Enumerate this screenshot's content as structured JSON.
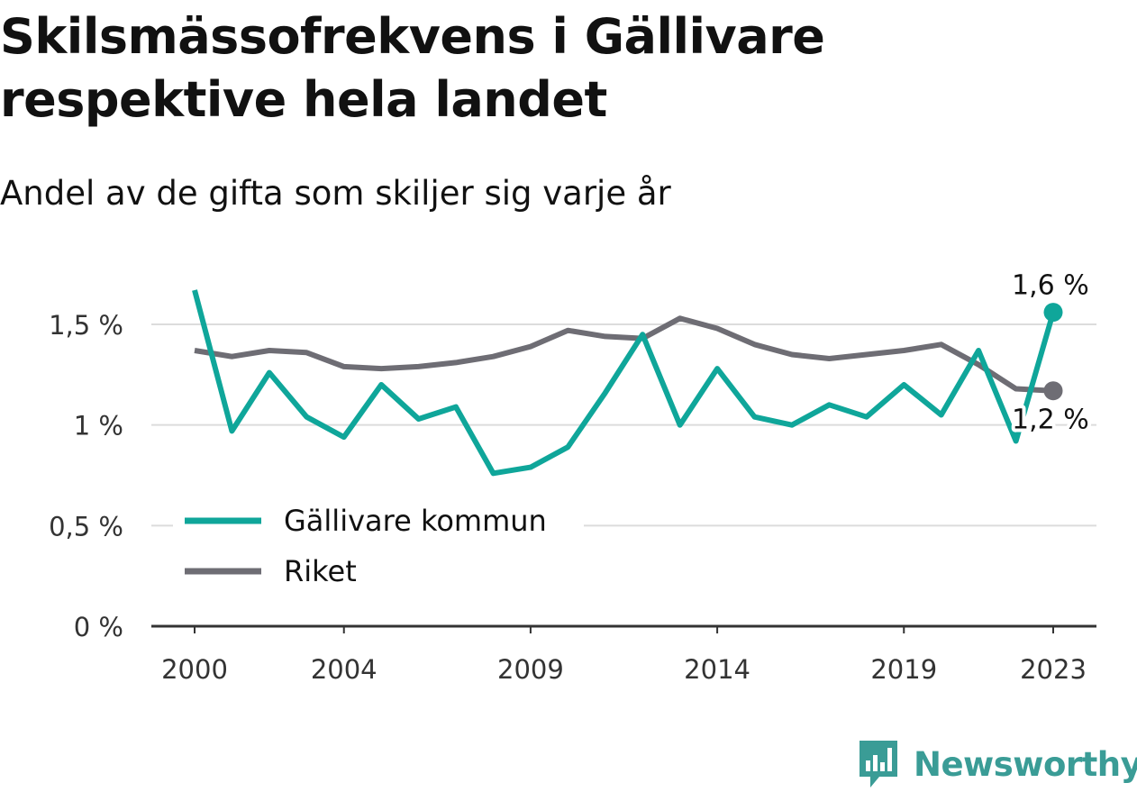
{
  "title": "Skilsmässofrekvens i Gällivare respektive hela landet",
  "subtitle": "Andel av de gifta som skiljer sig varje år",
  "brand": {
    "name": "Newsworthy",
    "color": "#3a9c96",
    "icon": "newsworthy-bar-chart-icon"
  },
  "chart_data": {
    "type": "line",
    "x": [
      2000,
      2001,
      2002,
      2003,
      2004,
      2005,
      2006,
      2007,
      2008,
      2009,
      2010,
      2011,
      2012,
      2013,
      2014,
      2015,
      2016,
      2017,
      2018,
      2019,
      2020,
      2021,
      2022,
      2023
    ],
    "x_ticks": [
      2000,
      2004,
      2009,
      2014,
      2019,
      2023
    ],
    "y_ticks": [
      0,
      0.5,
      1,
      1.5
    ],
    "y_tick_labels": [
      "0 %",
      "0,5 %",
      "1 %",
      "1,5 %"
    ],
    "ylim": [
      0,
      1.65
    ],
    "grid": true,
    "legend_position": "bottom-left",
    "series": [
      {
        "name": "Gällivare kommun",
        "color": "#0fa69a",
        "values": [
          1.67,
          0.97,
          1.26,
          1.04,
          0.94,
          1.2,
          1.03,
          1.09,
          0.76,
          0.79,
          0.89,
          1.16,
          1.45,
          1.0,
          1.28,
          1.04,
          1.0,
          1.1,
          1.04,
          1.2,
          1.05,
          1.37,
          0.92,
          1.56
        ],
        "end_label": "1,6 %"
      },
      {
        "name": "Riket",
        "color": "#6e6d74",
        "values": [
          1.37,
          1.34,
          1.37,
          1.36,
          1.29,
          1.28,
          1.29,
          1.31,
          1.34,
          1.39,
          1.47,
          1.44,
          1.43,
          1.53,
          1.48,
          1.4,
          1.35,
          1.33,
          1.35,
          1.37,
          1.4,
          1.3,
          1.18,
          1.17
        ],
        "end_label": "1,2 %"
      }
    ]
  }
}
